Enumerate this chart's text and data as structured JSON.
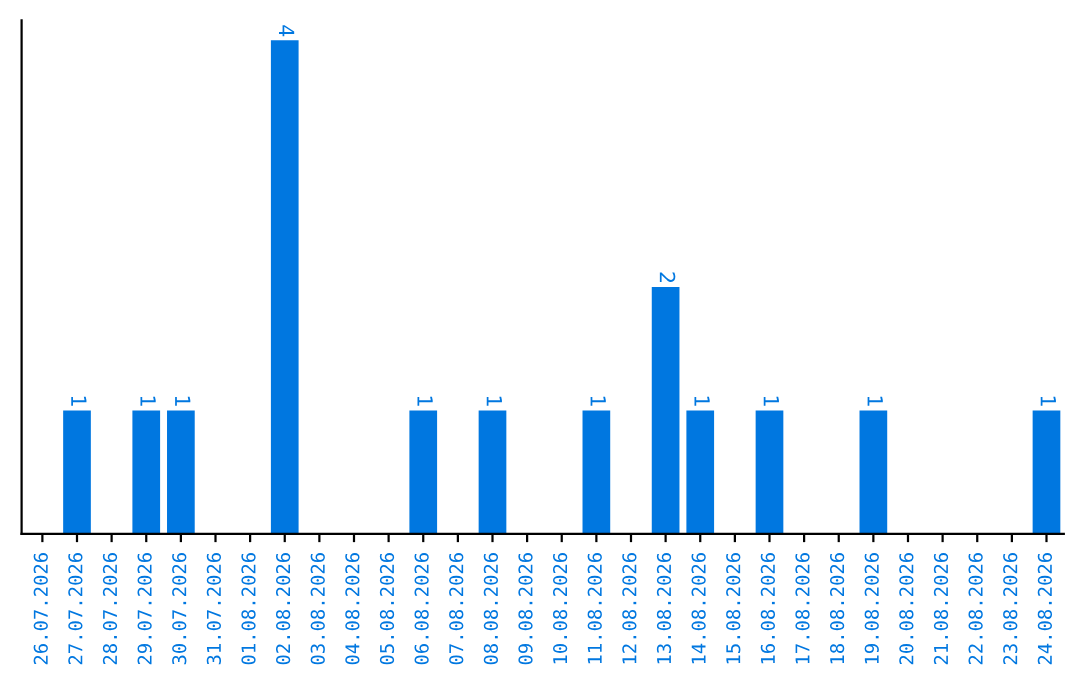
{
  "chart_data": {
    "type": "bar",
    "categories": [
      "26.07.2026",
      "27.07.2026",
      "28.07.2026",
      "29.07.2026",
      "30.07.2026",
      "31.07.2026",
      "01.08.2026",
      "02.08.2026",
      "03.08.2026",
      "04.08.2026",
      "05.08.2026",
      "06.08.2026",
      "07.08.2026",
      "08.08.2026",
      "09.08.2026",
      "10.08.2026",
      "11.08.2026",
      "12.08.2026",
      "13.08.2026",
      "14.08.2026",
      "15.08.2026",
      "16.08.2026",
      "17.08.2026",
      "18.08.2026",
      "19.08.2026",
      "20.08.2026",
      "21.08.2026",
      "22.08.2026",
      "23.08.2026",
      "24.08.2026"
    ],
    "values": [
      0,
      1,
      0,
      1,
      1,
      0,
      0,
      4,
      0,
      0,
      0,
      1,
      0,
      1,
      0,
      0,
      1,
      0,
      2,
      1,
      0,
      1,
      0,
      0,
      1,
      0,
      0,
      0,
      0,
      1
    ],
    "color": "#0077e0",
    "ylim": [
      0,
      4.16
    ],
    "tick_labels": "x",
    "value_labels": [
      null,
      "1",
      null,
      "1",
      "1",
      null,
      null,
      "4",
      null,
      null,
      null,
      "1",
      null,
      "1",
      null,
      null,
      "1",
      null,
      "2",
      "1",
      null,
      "1",
      null,
      null,
      "1",
      null,
      null,
      null,
      null,
      "1"
    ],
    "grid": false
  }
}
